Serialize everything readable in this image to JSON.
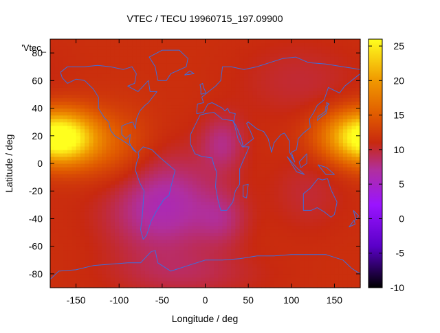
{
  "chart_data": {
    "type": "heatmap",
    "title": "VTEC / TECU 19960715_197.09900",
    "xlabel": "Longitude / deg",
    "ylabel": "Latitude / deg",
    "key_label": "'Vtec_",
    "xlim": [
      -180,
      180
    ],
    "ylim": [
      -90,
      90
    ],
    "x_ticks": [
      -150,
      -100,
      -50,
      0,
      50,
      100,
      150
    ],
    "y_ticks": [
      -80,
      -60,
      -40,
      -20,
      0,
      20,
      40,
      60,
      80
    ],
    "colorbar": {
      "range": [
        -10,
        26
      ],
      "ticks": [
        -10,
        -5,
        0,
        5,
        10,
        15,
        20,
        25
      ],
      "colormap": "gnuplot-pm3d-black-purple-red-yellow",
      "stops": [
        {
          "value": -10,
          "color": "#000000"
        },
        {
          "value": -4,
          "color": "#5a00c8"
        },
        {
          "value": 2,
          "color": "#9a14ff"
        },
        {
          "value": 7,
          "color": "#b02fa0"
        },
        {
          "value": 11,
          "color": "#c8290f"
        },
        {
          "value": 15,
          "color": "#e05a00"
        },
        {
          "value": 20,
          "color": "#f09800"
        },
        {
          "value": 26,
          "color": "#ffff1e"
        }
      ]
    },
    "field": {
      "description": "VTEC grid values (TECU)",
      "grid": {
        "lon_step": 5,
        "lat_step": 2.5
      },
      "background_value": 11.5,
      "features": [
        {
          "lon": -160,
          "lat": 18,
          "amplitude": 9.5,
          "lon_sigma": 28,
          "lat_sigma": 14
        },
        {
          "lon": 175,
          "lat": 20,
          "amplitude": 9.5,
          "lon_sigma": 32,
          "lat_sigma": 13
        },
        {
          "lon": -50,
          "lat": -30,
          "amplitude": -5.5,
          "lon_sigma": 45,
          "lat_sigma": 25
        },
        {
          "lon": 20,
          "lat": 15,
          "amplitude": -3.5,
          "lon_sigma": 18,
          "lat_sigma": 14
        },
        {
          "lon": 20,
          "lat": -40,
          "amplitude": -2.5,
          "lon_sigma": 20,
          "lat_sigma": 14
        },
        {
          "lon": -100,
          "lat": 10,
          "amplitude": 3.0,
          "lon_sigma": 30,
          "lat_sigma": 20
        },
        {
          "lon": 110,
          "lat": 60,
          "amplitude": -1.5,
          "lon_sigma": 50,
          "lat_sigma": 20
        },
        {
          "lon": 120,
          "lat": -20,
          "amplitude": -1.5,
          "lon_sigma": 30,
          "lat_sigma": 20
        },
        {
          "lon": -20,
          "lat": -80,
          "amplitude": -2.0,
          "lon_sigma": 60,
          "lat_sigma": 12
        }
      ]
    },
    "overlay": {
      "name": "coastlines",
      "color": "#3b6fe0"
    },
    "coastlines": [
      {
        "name": "north-america",
        "points": [
          [
            -168,
            66
          ],
          [
            -160,
            70
          ],
          [
            -140,
            70
          ],
          [
            -125,
            71
          ],
          [
            -110,
            70
          ],
          [
            -95,
            68
          ],
          [
            -85,
            70
          ],
          [
            -80,
            65
          ],
          [
            -82,
            58
          ],
          [
            -90,
            56
          ],
          [
            -78,
            52
          ],
          [
            -66,
            60
          ],
          [
            -64,
            52
          ],
          [
            -56,
            52
          ],
          [
            -66,
            44
          ],
          [
            -70,
            42
          ],
          [
            -76,
            38
          ],
          [
            -80,
            32
          ],
          [
            -81,
            25
          ],
          [
            -84,
            30
          ],
          [
            -90,
            29
          ],
          [
            -97,
            27
          ],
          [
            -97,
            21
          ],
          [
            -92,
            18
          ],
          [
            -87,
            21
          ],
          [
            -88,
            15
          ],
          [
            -84,
            10
          ],
          [
            -80,
            8
          ],
          [
            -85,
            12
          ],
          [
            -92,
            15
          ],
          [
            -105,
            20
          ],
          [
            -110,
            24
          ],
          [
            -112,
            30
          ],
          [
            -117,
            33
          ],
          [
            -124,
            40
          ],
          [
            -124,
            48
          ],
          [
            -130,
            54
          ],
          [
            -140,
            60
          ],
          [
            -150,
            61
          ],
          [
            -160,
            58
          ],
          [
            -166,
            62
          ],
          [
            -168,
            66
          ]
        ]
      },
      {
        "name": "greenland",
        "points": [
          [
            -55,
            60
          ],
          [
            -45,
            60
          ],
          [
            -40,
            65
          ],
          [
            -22,
            70
          ],
          [
            -20,
            76
          ],
          [
            -30,
            82
          ],
          [
            -50,
            82
          ],
          [
            -65,
            77
          ],
          [
            -58,
            70
          ],
          [
            -55,
            60
          ]
        ]
      },
      {
        "name": "south-america",
        "points": [
          [
            -78,
            8
          ],
          [
            -72,
            12
          ],
          [
            -62,
            10
          ],
          [
            -52,
            4
          ],
          [
            -35,
            -5
          ],
          [
            -39,
            -15
          ],
          [
            -42,
            -23
          ],
          [
            -48,
            -26
          ],
          [
            -57,
            -35
          ],
          [
            -63,
            -42
          ],
          [
            -68,
            -52
          ],
          [
            -72,
            -55
          ],
          [
            -75,
            -48
          ],
          [
            -73,
            -38
          ],
          [
            -71,
            -20
          ],
          [
            -76,
            -14
          ],
          [
            -81,
            -5
          ],
          [
            -80,
            0
          ],
          [
            -77,
            5
          ],
          [
            -78,
            8
          ]
        ]
      },
      {
        "name": "europe-asia",
        "points": [
          [
            -10,
            36
          ],
          [
            -9,
            43
          ],
          [
            -2,
            44
          ],
          [
            -4,
            48
          ],
          [
            2,
            51
          ],
          [
            8,
            54
          ],
          [
            12,
            56
          ],
          [
            18,
            60
          ],
          [
            20,
            70
          ],
          [
            30,
            70
          ],
          [
            45,
            68
          ],
          [
            60,
            70
          ],
          [
            75,
            73
          ],
          [
            90,
            76
          ],
          [
            105,
            77
          ],
          [
            120,
            73
          ],
          [
            140,
            72
          ],
          [
            160,
            70
          ],
          [
            180,
            68
          ],
          [
            180,
            65
          ],
          [
            170,
            60
          ],
          [
            162,
            56
          ],
          [
            156,
            51
          ],
          [
            143,
            55
          ],
          [
            138,
            46
          ],
          [
            130,
            42
          ],
          [
            126,
            37
          ],
          [
            121,
            32
          ],
          [
            122,
            26
          ],
          [
            114,
            22
          ],
          [
            108,
            18
          ],
          [
            106,
            10
          ],
          [
            100,
            8
          ],
          [
            104,
            1
          ],
          [
            98,
            8
          ],
          [
            98,
            16
          ],
          [
            92,
            22
          ],
          [
            88,
            21
          ],
          [
            80,
            15
          ],
          [
            77,
            8
          ],
          [
            73,
            18
          ],
          [
            68,
            23
          ],
          [
            60,
            25
          ],
          [
            56,
            27
          ],
          [
            50,
            30
          ],
          [
            48,
            29
          ],
          [
            52,
            24
          ],
          [
            56,
            18
          ],
          [
            52,
            16
          ],
          [
            44,
            12
          ],
          [
            42,
            18
          ],
          [
            36,
            27
          ],
          [
            33,
            30
          ],
          [
            35,
            36
          ],
          [
            28,
            37
          ],
          [
            26,
            40
          ],
          [
            23,
            38
          ],
          [
            20,
            40
          ],
          [
            14,
            42
          ],
          [
            8,
            44
          ],
          [
            3,
            43
          ],
          [
            -2,
            37
          ],
          [
            -10,
            36
          ]
        ]
      },
      {
        "name": "africa",
        "points": [
          [
            -17,
            21
          ],
          [
            -17,
            14
          ],
          [
            -12,
            7
          ],
          [
            -4,
            5
          ],
          [
            8,
            4
          ],
          [
            10,
            -1
          ],
          [
            13,
            -6
          ],
          [
            12,
            -17
          ],
          [
            15,
            -27
          ],
          [
            18,
            -34
          ],
          [
            25,
            -34
          ],
          [
            32,
            -28
          ],
          [
            35,
            -20
          ],
          [
            40,
            -15
          ],
          [
            40,
            -4
          ],
          [
            44,
            2
          ],
          [
            51,
            12
          ],
          [
            43,
            12
          ],
          [
            38,
            18
          ],
          [
            34,
            28
          ],
          [
            32,
            31
          ],
          [
            20,
            32
          ],
          [
            10,
            37
          ],
          [
            0,
            36
          ],
          [
            -6,
            35
          ],
          [
            -10,
            30
          ],
          [
            -17,
            21
          ]
        ]
      },
      {
        "name": "madagascar",
        "points": [
          [
            44,
            -16
          ],
          [
            50,
            -15
          ],
          [
            48,
            -25
          ],
          [
            44,
            -24
          ],
          [
            44,
            -16
          ]
        ]
      },
      {
        "name": "australia",
        "points": [
          [
            114,
            -22
          ],
          [
            114,
            -34
          ],
          [
            123,
            -34
          ],
          [
            130,
            -32
          ],
          [
            138,
            -35
          ],
          [
            146,
            -39
          ],
          [
            150,
            -37
          ],
          [
            153,
            -28
          ],
          [
            146,
            -19
          ],
          [
            142,
            -11
          ],
          [
            136,
            -12
          ],
          [
            131,
            -11
          ],
          [
            122,
            -18
          ],
          [
            114,
            -22
          ]
        ]
      },
      {
        "name": "new-zealand-north",
        "points": [
          [
            172,
            -34
          ],
          [
            178,
            -38
          ],
          [
            175,
            -41
          ],
          [
            172,
            -34
          ]
        ]
      },
      {
        "name": "new-zealand-south",
        "points": [
          [
            173,
            -41
          ],
          [
            174,
            -44
          ],
          [
            167,
            -46
          ],
          [
            173,
            -41
          ]
        ]
      },
      {
        "name": "japan",
        "points": [
          [
            130,
            31
          ],
          [
            135,
            34
          ],
          [
            140,
            36
          ],
          [
            142,
            40
          ],
          [
            141,
            44
          ],
          [
            144,
            43
          ],
          [
            140,
            41
          ],
          [
            140,
            38
          ],
          [
            136,
            36
          ],
          [
            131,
            34
          ],
          [
            130,
            31
          ]
        ]
      },
      {
        "name": "uk",
        "points": [
          [
            -5,
            50
          ],
          [
            1,
            51
          ],
          [
            -2,
            55
          ],
          [
            -3,
            58
          ],
          [
            -6,
            57
          ],
          [
            -5,
            54
          ],
          [
            -5,
            50
          ]
        ]
      },
      {
        "name": "iceland",
        "points": [
          [
            -24,
            64
          ],
          [
            -13,
            65
          ],
          [
            -18,
            67
          ],
          [
            -24,
            64
          ]
        ]
      },
      {
        "name": "indonesia",
        "points": [
          [
            95,
            5
          ],
          [
            106,
            -6
          ],
          [
            115,
            -8
          ],
          [
            106,
            -3
          ],
          [
            95,
            5
          ]
        ]
      },
      {
        "name": "borneo",
        "points": [
          [
            109,
            1
          ],
          [
            118,
            7
          ],
          [
            118,
            0
          ],
          [
            111,
            -3
          ],
          [
            109,
            1
          ]
        ]
      },
      {
        "name": "new-guinea",
        "points": [
          [
            131,
            -1
          ],
          [
            141,
            -3
          ],
          [
            150,
            -8
          ],
          [
            140,
            -8
          ],
          [
            131,
            -1
          ]
        ]
      },
      {
        "name": "antarctica",
        "points": [
          [
            -180,
            -84
          ],
          [
            -170,
            -78
          ],
          [
            -150,
            -77
          ],
          [
            -130,
            -74
          ],
          [
            -110,
            -73
          ],
          [
            -90,
            -72
          ],
          [
            -75,
            -72
          ],
          [
            -63,
            -64
          ],
          [
            -58,
            -63
          ],
          [
            -55,
            -72
          ],
          [
            -40,
            -78
          ],
          [
            -20,
            -74
          ],
          [
            0,
            -70
          ],
          [
            20,
            -70
          ],
          [
            40,
            -69
          ],
          [
            60,
            -67
          ],
          [
            80,
            -67
          ],
          [
            100,
            -66
          ],
          [
            120,
            -66
          ],
          [
            140,
            -66
          ],
          [
            160,
            -70
          ],
          [
            170,
            -76
          ],
          [
            180,
            -80
          ],
          [
            180,
            -90
          ],
          [
            -180,
            -90
          ],
          [
            -180,
            -84
          ]
        ]
      }
    ]
  }
}
